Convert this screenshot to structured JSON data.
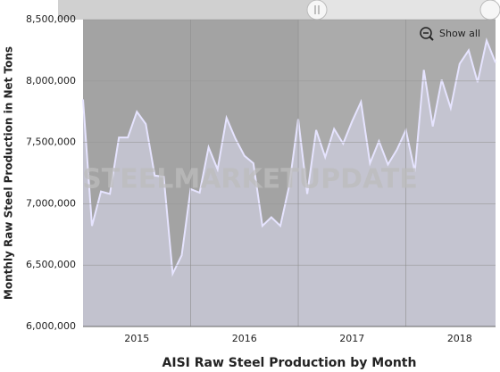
{
  "chart_data": {
    "type": "area",
    "title": "AISI Raw Steel Production by Month",
    "y_label": "Monthly Raw Steel Production in Net Tons",
    "watermark": "STEELMARKETUPDATE",
    "button": "Show all",
    "categories": [
      null,
      null,
      null,
      null,
      null,
      null,
      "2015",
      null,
      null,
      null,
      null,
      null,
      null,
      null,
      null,
      null,
      null,
      null,
      "2016",
      null,
      null,
      null,
      null,
      null,
      null,
      null,
      null,
      null,
      null,
      null,
      "2017",
      null,
      null,
      null,
      null,
      null,
      null,
      null,
      null,
      null,
      null,
      null,
      "2018",
      null,
      null,
      null,
      null
    ],
    "series": [
      {
        "name": "Raw Steel Production",
        "color": "#e6e4ff",
        "values": [
          7850000,
          6820000,
          7100000,
          7080000,
          7540000,
          7540000,
          7750000,
          7650000,
          7230000,
          7220000,
          6430000,
          6580000,
          7120000,
          7090000,
          7460000,
          7280000,
          7700000,
          7530000,
          7390000,
          7330000,
          6820000,
          6890000,
          6820000,
          7150000,
          7690000,
          7080000,
          7600000,
          7380000,
          7610000,
          7490000,
          7670000,
          7830000,
          7330000,
          7510000,
          7320000,
          7440000,
          7600000,
          7260000,
          8090000,
          7630000,
          8010000,
          7780000,
          8140000,
          8250000,
          7990000,
          8330000,
          8150000
        ]
      }
    ],
    "ylim": [
      6000000,
      8500000
    ],
    "yticks": [
      {
        "value": 6000000,
        "label": "6,000,000"
      },
      {
        "value": 6500000,
        "label": "6,500,000"
      },
      {
        "value": 7000000,
        "label": "7,000,000"
      },
      {
        "value": 7500000,
        "label": "7,500,000"
      },
      {
        "value": 8000000,
        "label": "8,000,000"
      },
      {
        "value": 8500000,
        "label": "8,500,000"
      }
    ],
    "grid": true
  }
}
